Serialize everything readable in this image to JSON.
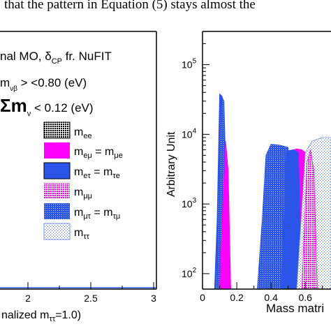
{
  "caption_fragment": "that the pattern in Equation (5) stays almost the",
  "chart_data": [
    {
      "type": "area",
      "panel": "left",
      "legend_title": "nal MO, δ",
      "legend_title_sub": "CP",
      "legend_title_tail": " fr. NuFIT",
      "legend_line2_prefix": "m",
      "legend_line2_sub": "νβ",
      "legend_line2_tail": " > <0.80 (eV)",
      "legend_line3_prefix": "Σm",
      "legend_line3_sub": "ν",
      "legend_line3_tail": " < 0.12 (eV)",
      "legend": [
        {
          "label": "m",
          "sub": "ee",
          "color": "#000000",
          "pattern": "dense-dots"
        },
        {
          "label": "m",
          "sub": "eμ",
          "eq": " = m",
          "sub2": "μe",
          "color": "#ff00ff",
          "pattern": "solid"
        },
        {
          "label": "m",
          "sub": "eτ",
          "eq": " = m",
          "sub2": "τe",
          "color": "#2b55e8",
          "pattern": "solid"
        },
        {
          "label": "m",
          "sub": "μμ",
          "color": "#ff00ff",
          "pattern": "dots"
        },
        {
          "label": "m",
          "sub": "μτ",
          "eq": " = m",
          "sub2": "τμ",
          "color": "#2b55e8",
          "pattern": "dots"
        },
        {
          "label": "m",
          "sub": "ττ",
          "color": "#7a8fe0",
          "pattern": "sparse-dots"
        }
      ],
      "x_ticks": [
        "2",
        "2.5",
        "3"
      ],
      "xlabel": "nalized m",
      "xlabel_sub": "ττ",
      "xlabel_tail": "=1.0)"
    },
    {
      "type": "area",
      "panel": "right",
      "ylabel": "Arbitrary Unit",
      "xlabel": "Mass matri",
      "yscale": "log",
      "ylim": [
        60,
        300000
      ],
      "xlim": [
        0,
        0.75
      ],
      "y_ticks": [
        {
          "base": "10",
          "exp": "2",
          "value": 100
        },
        {
          "base": "10",
          "exp": "3",
          "value": 1000
        },
        {
          "base": "10",
          "exp": "4",
          "value": 10000
        },
        {
          "base": "10",
          "exp": "5",
          "value": 100000
        }
      ],
      "x_ticks": [
        "0",
        "0.2",
        "0.4",
        "0.6"
      ],
      "x_tick_values": [
        0,
        0.2,
        0.4,
        0.6
      ],
      "series": [
        {
          "sub": "eτ",
          "color": "#2b55e8",
          "pattern": "solid",
          "x": [
            0.07,
            0.085,
            0.1,
            0.115,
            0.13,
            0.14
          ],
          "y": [
            60,
            600,
            38000,
            35000,
            2000,
            60
          ]
        },
        {
          "sub": "μτ",
          "color": "#2b55e8",
          "pattern": "dots",
          "x": [
            0.08,
            0.1,
            0.11,
            0.125,
            0.14,
            0.15
          ],
          "y": [
            60,
            4000,
            36000,
            30000,
            1500,
            60
          ]
        },
        {
          "sub": "eμ",
          "color": "#ff00ff",
          "pattern": "solid",
          "x": [
            0.1,
            0.12,
            0.135,
            0.15,
            0.165
          ],
          "y": [
            60,
            1200,
            8000,
            3000,
            60
          ]
        },
        {
          "sub": "μτ",
          "color": "#2b55e8",
          "pattern": "dots",
          "x": [
            0.32,
            0.35,
            0.37,
            0.4,
            0.45,
            0.5,
            0.52
          ],
          "y": [
            60,
            700,
            5000,
            7200,
            7000,
            6500,
            60
          ]
        },
        {
          "sub": "eμ",
          "color": "#ff00ff",
          "pattern": "solid",
          "x": [
            0.49,
            0.51,
            0.55,
            0.58,
            0.6,
            0.62
          ],
          "y": [
            60,
            5800,
            6200,
            6000,
            5500,
            60
          ]
        },
        {
          "sub": "eτ",
          "color": "#2b55e8",
          "pattern": "solid",
          "x": [
            0.46,
            0.49,
            0.53,
            0.56,
            0.58
          ],
          "y": [
            60,
            5800,
            6000,
            5500,
            60
          ]
        },
        {
          "sub": "ττ",
          "color": "#7a8fe0",
          "pattern": "sparse-dots",
          "x": [
            0.55,
            0.6,
            0.64,
            0.7,
            0.76
          ],
          "y": [
            60,
            5500,
            8000,
            9000,
            9000
          ]
        },
        {
          "sub": "μμ",
          "color": "#ff00ff",
          "pattern": "dots",
          "x": [
            0.58,
            0.61,
            0.63,
            0.65,
            0.67
          ],
          "y": [
            60,
            4000,
            6000,
            3000,
            60
          ]
        }
      ]
    }
  ]
}
